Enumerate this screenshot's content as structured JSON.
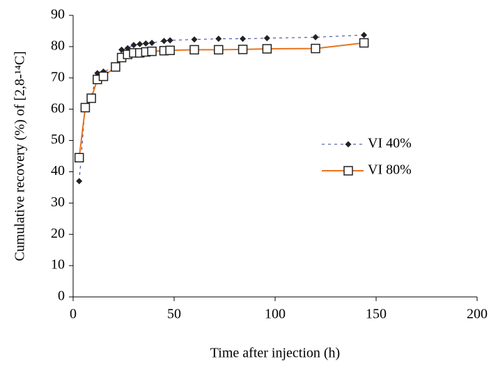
{
  "chart_data": {
    "type": "line",
    "x_label": "Time after injection (h)",
    "y_label": "Cumulative recovery (%) of  [2,8-¹⁴C]",
    "xlim": [
      0,
      200
    ],
    "xticks": [
      0,
      50,
      100,
      150,
      200
    ],
    "ylim": [
      0,
      90
    ],
    "yticks": [
      0,
      10,
      20,
      30,
      40,
      50,
      60,
      70,
      80,
      90
    ],
    "legend": "right",
    "series": [
      {
        "name": "VI 40%",
        "color": "#2b3a9e",
        "line_style": "dashed",
        "marker": "diamond",
        "x": [
          3,
          6,
          9,
          12,
          15,
          21,
          24,
          27,
          30,
          33,
          36,
          39,
          45,
          48,
          60,
          72,
          84,
          96,
          120,
          144
        ],
        "values": [
          37,
          61,
          64,
          71.5,
          72,
          73.5,
          79,
          79.5,
          80.5,
          80.8,
          81,
          81.2,
          81.8,
          82,
          82.3,
          82.5,
          82.5,
          82.7,
          83,
          83.7
        ]
      },
      {
        "name": "VI 80%",
        "color": "#e8731e",
        "line_style": "solid",
        "marker": "square",
        "x": [
          3,
          6,
          9,
          12,
          15,
          21,
          24,
          27,
          30,
          33,
          36,
          39,
          45,
          48,
          60,
          72,
          84,
          96,
          120,
          144
        ],
        "values": [
          44.5,
          60.5,
          63.5,
          69.5,
          70.5,
          73.5,
          76.5,
          77.5,
          78,
          78,
          78.3,
          78.5,
          78.7,
          78.8,
          79,
          79,
          79.1,
          79.3,
          79.4,
          81.2
        ]
      }
    ]
  }
}
